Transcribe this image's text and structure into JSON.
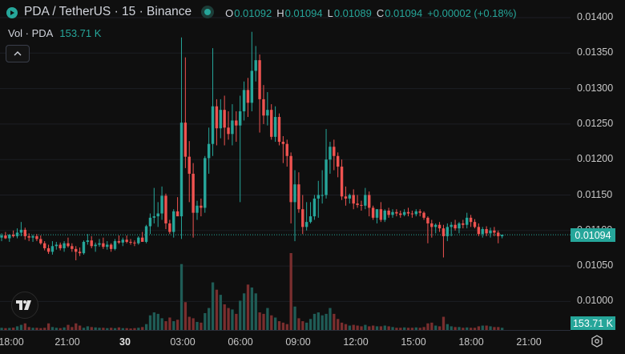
{
  "legend": {
    "symbol": "PDA / TetherUS · 15 · Binance",
    "ohlc": [
      {
        "key": "O",
        "value": "0.01092"
      },
      {
        "key": "H",
        "value": "0.01094"
      },
      {
        "key": "L",
        "value": "0.01089"
      },
      {
        "key": "C",
        "value": "0.01094"
      }
    ],
    "change": "+0.00002 (+0.18%)"
  },
  "volume": {
    "label": "Vol · PDA",
    "value": "153.71 K"
  },
  "price_axis": {
    "ticks": [
      "0.01400",
      "0.01350",
      "0.01300",
      "0.01250",
      "0.01200",
      "0.01150",
      "0.01100",
      "0.01050",
      "0.01000"
    ],
    "hidden_tick": "0.01100",
    "current_price": "0.01094",
    "current_volume": "153.71 K"
  },
  "time_axis": {
    "ticks": [
      {
        "label": "18:00",
        "bold": false
      },
      {
        "label": "21:00",
        "bold": false
      },
      {
        "label": "30",
        "bold": true
      },
      {
        "label": "03:00",
        "bold": false
      },
      {
        "label": "06:00",
        "bold": false
      },
      {
        "label": "09:00",
        "bold": false
      },
      {
        "label": "12:00",
        "bold": false
      },
      {
        "label": "15:00",
        "bold": false
      },
      {
        "label": "18:00",
        "bold": false
      },
      {
        "label": "21:00",
        "bold": false
      }
    ]
  },
  "colors": {
    "up": "#26a69a",
    "down": "#ef5350",
    "up_volume": "#1f5c56",
    "down_volume": "#7a2e2e",
    "background": "#0f0f0f"
  },
  "icons": {
    "symbol": "exchange-logo-icon",
    "status": "market-open-icon",
    "collapse": "chevron-up-icon",
    "brand": "tradingview-logo-icon",
    "settings": "gear-icon"
  },
  "chart_data": {
    "type": "candlestick",
    "title": "PDA / TetherUS · 15 · Binance",
    "interval": "15",
    "y_range": [
      0.00975,
      0.01415
    ],
    "x_ticks": [
      "18:00",
      "21:00",
      "30",
      "03:00",
      "06:00",
      "09:00",
      "12:00",
      "15:00",
      "18:00",
      "21:00"
    ],
    "candles_ohlcv": [
      [
        0.0109,
        0.01096,
        0.01085,
        0.01093,
        3000
      ],
      [
        0.01093,
        0.01098,
        0.01088,
        0.01089,
        2500
      ],
      [
        0.01089,
        0.01095,
        0.01084,
        0.01094,
        2800
      ],
      [
        0.01094,
        0.011,
        0.0109,
        0.01092,
        3200
      ],
      [
        0.01092,
        0.01103,
        0.01089,
        0.01097,
        5000
      ],
      [
        0.01097,
        0.01112,
        0.01092,
        0.01101,
        7000
      ],
      [
        0.01101,
        0.01104,
        0.01087,
        0.01092,
        9000
      ],
      [
        0.01092,
        0.01096,
        0.01085,
        0.0109,
        4000
      ],
      [
        0.0109,
        0.01094,
        0.01084,
        0.01092,
        3000
      ],
      [
        0.01092,
        0.01095,
        0.01085,
        0.01088,
        3000
      ],
      [
        0.01088,
        0.01093,
        0.0108,
        0.01082,
        2500
      ],
      [
        0.01082,
        0.01085,
        0.01072,
        0.01075,
        3000
      ],
      [
        0.01075,
        0.0108,
        0.01067,
        0.0107,
        9000
      ],
      [
        0.0107,
        0.01085,
        0.01066,
        0.01078,
        4000
      ],
      [
        0.01078,
        0.01084,
        0.01073,
        0.0108,
        3000
      ],
      [
        0.0108,
        0.01083,
        0.01072,
        0.01075,
        2500
      ],
      [
        0.01075,
        0.01085,
        0.0107,
        0.01082,
        3500
      ],
      [
        0.01082,
        0.0109,
        0.01076,
        0.01078,
        7000
      ],
      [
        0.01078,
        0.01082,
        0.0107,
        0.01074,
        4000
      ],
      [
        0.01074,
        0.01078,
        0.01058,
        0.0107,
        9000
      ],
      [
        0.0107,
        0.01076,
        0.01064,
        0.01068,
        6000
      ],
      [
        0.01068,
        0.01086,
        0.01066,
        0.01084,
        3000
      ],
      [
        0.01084,
        0.01095,
        0.0108,
        0.01086,
        5000
      ],
      [
        0.01086,
        0.01092,
        0.01075,
        0.01078,
        4000
      ],
      [
        0.01078,
        0.01083,
        0.0107,
        0.0108,
        3500
      ],
      [
        0.0108,
        0.01088,
        0.01077,
        0.01082,
        3000
      ],
      [
        0.01082,
        0.0109,
        0.01074,
        0.01077,
        3000
      ],
      [
        0.01077,
        0.01085,
        0.01073,
        0.0108,
        2500
      ],
      [
        0.0108,
        0.01082,
        0.0107,
        0.01074,
        3000
      ],
      [
        0.01074,
        0.01088,
        0.01072,
        0.01085,
        2500
      ],
      [
        0.01085,
        0.01093,
        0.01081,
        0.01083,
        3500
      ],
      [
        0.01083,
        0.0109,
        0.01078,
        0.01087,
        2500
      ],
      [
        0.01087,
        0.01093,
        0.01082,
        0.01084,
        2500
      ],
      [
        0.01084,
        0.01088,
        0.0108,
        0.01083,
        2000
      ],
      [
        0.01083,
        0.01086,
        0.01078,
        0.01082,
        2500
      ],
      [
        0.01082,
        0.01092,
        0.0108,
        0.0109,
        3000
      ],
      [
        0.0109,
        0.01098,
        0.01085,
        0.01084,
        4000
      ],
      [
        0.01084,
        0.01108,
        0.01082,
        0.01106,
        8000
      ],
      [
        0.01106,
        0.01124,
        0.01095,
        0.01118,
        20000
      ],
      [
        0.01118,
        0.0116,
        0.0111,
        0.0112,
        24000
      ],
      [
        0.0112,
        0.0114,
        0.01105,
        0.01124,
        22000
      ],
      [
        0.01124,
        0.01162,
        0.01115,
        0.01149,
        16000
      ],
      [
        0.01149,
        0.01152,
        0.01102,
        0.0111,
        12000
      ],
      [
        0.0111,
        0.01115,
        0.01095,
        0.01098,
        17000
      ],
      [
        0.01098,
        0.0113,
        0.0109,
        0.01127,
        12000
      ],
      [
        0.01127,
        0.01147,
        0.01122,
        0.0112,
        14000
      ],
      [
        0.0112,
        0.01372,
        0.01088,
        0.01252,
        90000
      ],
      [
        0.01252,
        0.01344,
        0.01188,
        0.01204,
        38000
      ],
      [
        0.01204,
        0.01226,
        0.0114,
        0.0118,
        18000
      ],
      [
        0.0118,
        0.01195,
        0.0109,
        0.01125,
        16000
      ],
      [
        0.01125,
        0.01142,
        0.01115,
        0.01135,
        11000
      ],
      [
        0.01135,
        0.01145,
        0.0112,
        0.01132,
        10000
      ],
      [
        0.01132,
        0.01205,
        0.01125,
        0.01202,
        23000
      ],
      [
        0.01202,
        0.01245,
        0.0118,
        0.01222,
        30000
      ],
      [
        0.01222,
        0.01357,
        0.01205,
        0.01275,
        65000
      ],
      [
        0.01275,
        0.01285,
        0.0122,
        0.01244,
        55000
      ],
      [
        0.01244,
        0.01285,
        0.0123,
        0.0127,
        48000
      ],
      [
        0.0127,
        0.0129,
        0.0122,
        0.01245,
        35000
      ],
      [
        0.01245,
        0.01268,
        0.01228,
        0.01236,
        30000
      ],
      [
        0.01236,
        0.01278,
        0.0122,
        0.01255,
        28000
      ],
      [
        0.01255,
        0.01268,
        0.01225,
        0.01248,
        22000
      ],
      [
        0.01248,
        0.0129,
        0.0114,
        0.01268,
        40000
      ],
      [
        0.01268,
        0.0131,
        0.01255,
        0.01298,
        50000
      ],
      [
        0.01298,
        0.01315,
        0.0126,
        0.0128,
        62000
      ],
      [
        0.0128,
        0.0138,
        0.01268,
        0.01325,
        58000
      ],
      [
        0.01325,
        0.0136,
        0.0131,
        0.0134,
        50000
      ],
      [
        0.0134,
        0.01348,
        0.01238,
        0.01285,
        24000
      ],
      [
        0.01285,
        0.01305,
        0.0125,
        0.01262,
        22000
      ],
      [
        0.01262,
        0.01295,
        0.01248,
        0.0127,
        30000
      ],
      [
        0.0127,
        0.01278,
        0.01228,
        0.01232,
        20000
      ],
      [
        0.01232,
        0.01275,
        0.01225,
        0.0126,
        17000
      ],
      [
        0.0126,
        0.01265,
        0.0122,
        0.01225,
        12000
      ],
      [
        0.01225,
        0.01233,
        0.01195,
        0.01222,
        10000
      ],
      [
        0.01222,
        0.01228,
        0.0119,
        0.01205,
        8000
      ],
      [
        0.01205,
        0.0121,
        0.0111,
        0.0114,
        105000
      ],
      [
        0.0114,
        0.01185,
        0.01085,
        0.01165,
        32000
      ],
      [
        0.01165,
        0.01182,
        0.01125,
        0.0113,
        16000
      ],
      [
        0.0113,
        0.0115,
        0.01095,
        0.01105,
        12000
      ],
      [
        0.01105,
        0.0114,
        0.011,
        0.01112,
        10000
      ],
      [
        0.01112,
        0.0114,
        0.0111,
        0.0112,
        15000
      ],
      [
        0.0112,
        0.0115,
        0.01115,
        0.01145,
        22000
      ],
      [
        0.01145,
        0.0117,
        0.01118,
        0.0115,
        24000
      ],
      [
        0.0115,
        0.01185,
        0.01138,
        0.0115,
        20000
      ],
      [
        0.0115,
        0.01243,
        0.01145,
        0.012,
        22000
      ],
      [
        0.012,
        0.01225,
        0.0118,
        0.01218,
        30000
      ],
      [
        0.01218,
        0.01228,
        0.01185,
        0.01205,
        22000
      ],
      [
        0.01205,
        0.0121,
        0.01175,
        0.0119,
        15000
      ],
      [
        0.0119,
        0.012,
        0.01143,
        0.01148,
        10000
      ],
      [
        0.01148,
        0.01162,
        0.01135,
        0.01145,
        8000
      ],
      [
        0.01145,
        0.01152,
        0.01138,
        0.0115,
        6000
      ],
      [
        0.0115,
        0.01158,
        0.0113,
        0.01138,
        7000
      ],
      [
        0.01138,
        0.0115,
        0.01132,
        0.01136,
        6000
      ],
      [
        0.01136,
        0.01142,
        0.01128,
        0.01135,
        5000
      ],
      [
        0.01135,
        0.0116,
        0.0113,
        0.0115,
        7000
      ],
      [
        0.0115,
        0.01155,
        0.0112,
        0.01132,
        5000
      ],
      [
        0.01132,
        0.01135,
        0.01115,
        0.01118,
        6000
      ],
      [
        0.01118,
        0.0113,
        0.0111,
        0.0113,
        5000
      ],
      [
        0.0113,
        0.0114,
        0.01112,
        0.01115,
        5000
      ],
      [
        0.01115,
        0.0113,
        0.01112,
        0.01128,
        6000
      ],
      [
        0.01128,
        0.01132,
        0.01118,
        0.01122,
        5000
      ],
      [
        0.01122,
        0.0113,
        0.01118,
        0.01126,
        4000
      ],
      [
        0.01126,
        0.0113,
        0.0112,
        0.01124,
        3000
      ],
      [
        0.01124,
        0.01128,
        0.01118,
        0.01122,
        3000
      ],
      [
        0.01122,
        0.0113,
        0.0112,
        0.01126,
        3500
      ],
      [
        0.01126,
        0.01132,
        0.0112,
        0.01124,
        3000
      ],
      [
        0.01124,
        0.01128,
        0.01118,
        0.01123,
        3000
      ],
      [
        0.01123,
        0.0113,
        0.0112,
        0.01127,
        3500
      ],
      [
        0.01127,
        0.0113,
        0.0112,
        0.01125,
        3000
      ],
      [
        0.01125,
        0.01127,
        0.01115,
        0.01118,
        4000
      ],
      [
        0.01118,
        0.0112,
        0.01082,
        0.0111,
        9000
      ],
      [
        0.0111,
        0.01115,
        0.0109,
        0.01105,
        10000
      ],
      [
        0.01105,
        0.0111,
        0.01096,
        0.01108,
        6000
      ],
      [
        0.01108,
        0.01112,
        0.01098,
        0.01103,
        5000
      ],
      [
        0.01103,
        0.01108,
        0.01062,
        0.01092,
        18000
      ],
      [
        0.01092,
        0.0111,
        0.01085,
        0.01105,
        8000
      ],
      [
        0.01105,
        0.01112,
        0.01092,
        0.01108,
        5000
      ],
      [
        0.01108,
        0.01115,
        0.011,
        0.01103,
        4000
      ],
      [
        0.01103,
        0.01112,
        0.01096,
        0.0111,
        4000
      ],
      [
        0.0111,
        0.01115,
        0.01103,
        0.01108,
        3000
      ],
      [
        0.01108,
        0.01125,
        0.01103,
        0.01118,
        3500
      ],
      [
        0.01118,
        0.01122,
        0.01105,
        0.01112,
        3000
      ],
      [
        0.01112,
        0.01116,
        0.01103,
        0.01105,
        3000
      ],
      [
        0.01105,
        0.0111,
        0.01092,
        0.01095,
        5000
      ],
      [
        0.01095,
        0.01105,
        0.0109,
        0.01102,
        6000
      ],
      [
        0.01102,
        0.01106,
        0.01092,
        0.01096,
        6000
      ],
      [
        0.01096,
        0.01104,
        0.0109,
        0.011,
        5000
      ],
      [
        0.011,
        0.01105,
        0.01092,
        0.01097,
        4000
      ],
      [
        0.01097,
        0.011,
        0.01082,
        0.01092,
        4000
      ],
      [
        0.01092,
        0.01094,
        0.01089,
        0.01094,
        3000
      ]
    ]
  }
}
